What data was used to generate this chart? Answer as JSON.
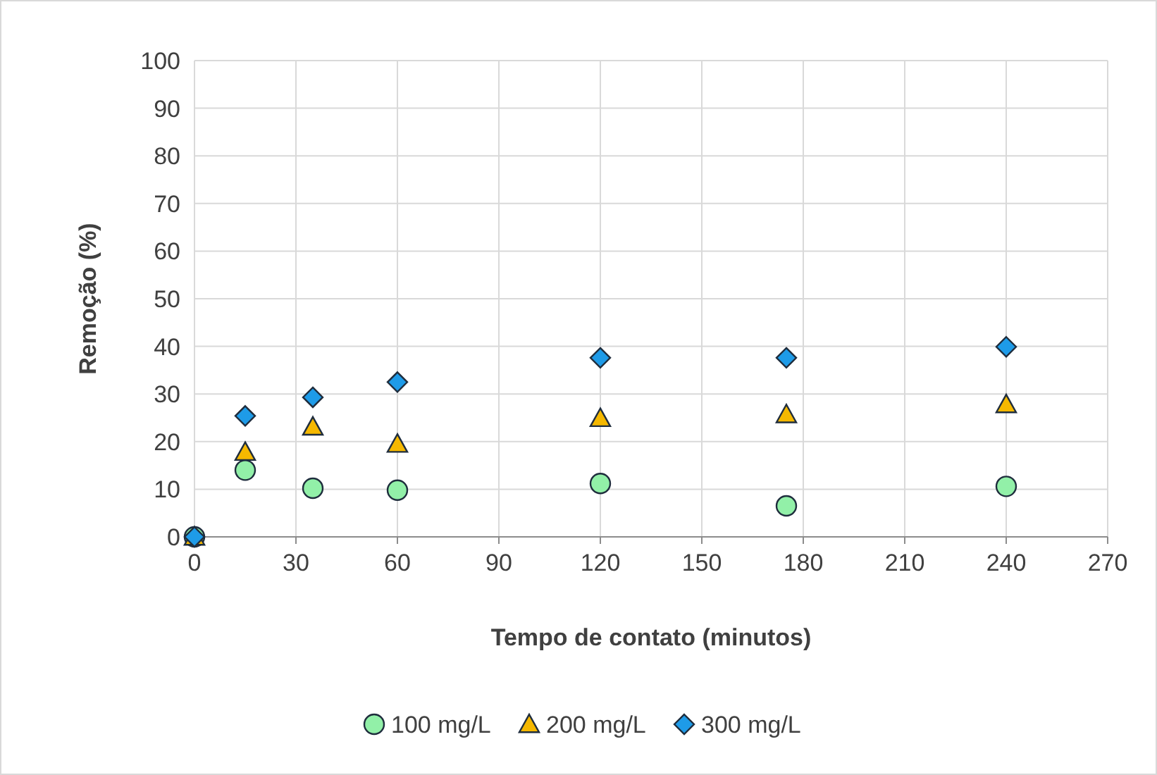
{
  "chart_data": {
    "type": "scatter",
    "xlabel": "Tempo de contato (minutos)",
    "ylabel": "Remoção (%)",
    "xlim": [
      0,
      270
    ],
    "xticks": [
      0,
      30,
      60,
      90,
      120,
      150,
      180,
      210,
      240,
      270
    ],
    "ylim": [
      0,
      100
    ],
    "yticks": [
      0,
      10,
      20,
      30,
      40,
      50,
      60,
      70,
      80,
      90,
      100
    ],
    "grid": true,
    "legend": "bottom",
    "x": [
      0,
      15,
      35,
      60,
      120,
      175,
      240
    ],
    "series": [
      {
        "name": "100 mg/L",
        "color": "#92f0a8",
        "marker": "circle",
        "values": [
          0,
          14,
          10.2,
          9.8,
          11.2,
          6.5,
          10.6
        ]
      },
      {
        "name": "200 mg/L",
        "color": "#f5b800",
        "marker": "triangle",
        "values": [
          0,
          17.8,
          23.1,
          19.5,
          24.9,
          25.7,
          27.8
        ]
      },
      {
        "name": "300 mg/L",
        "color": "#1e9be8",
        "marker": "diamond",
        "values": [
          0,
          25.4,
          29.3,
          32.5,
          37.6,
          37.6,
          39.9
        ]
      }
    ]
  }
}
